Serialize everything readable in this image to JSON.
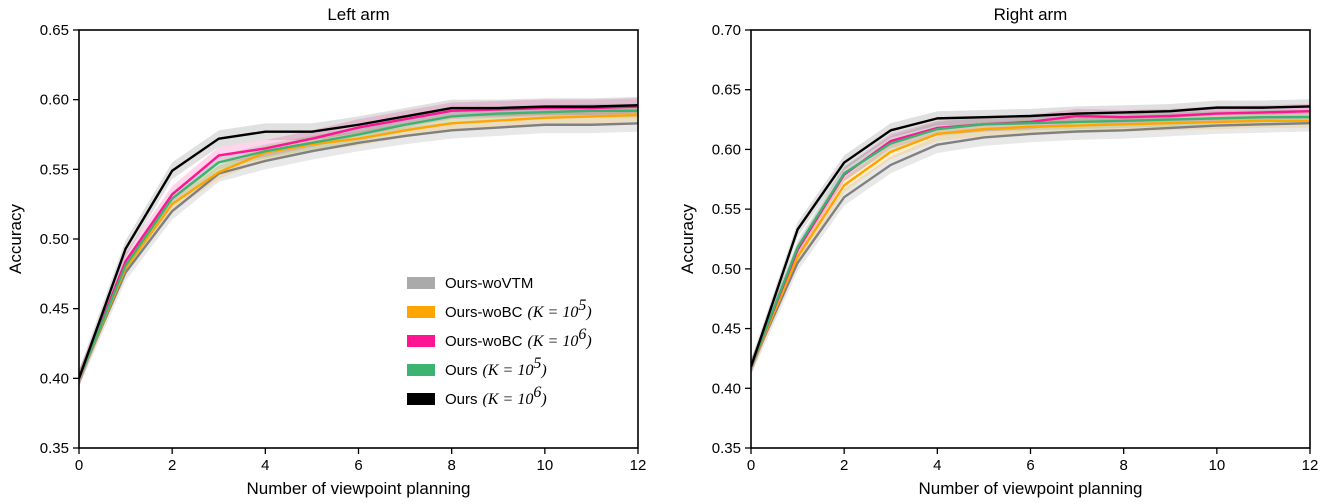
{
  "chart_data": [
    {
      "type": "line",
      "title": "Left arm",
      "xlabel": "Number of viewpoint planning",
      "ylabel": "Accuracy",
      "xlim": [
        0,
        12
      ],
      "ylim": [
        0.35,
        0.65
      ],
      "xticks": [
        0,
        2,
        4,
        6,
        8,
        10,
        12
      ],
      "yticks": [
        0.35,
        0.4,
        0.45,
        0.5,
        0.55,
        0.6,
        0.65
      ],
      "ytick_labels": [
        "0.35",
        "0.40",
        "0.45",
        "0.50",
        "0.55",
        "0.60",
        "0.65"
      ],
      "x": [
        0,
        1,
        2,
        3,
        4,
        5,
        6,
        7,
        8,
        9,
        10,
        11,
        12
      ],
      "series": [
        {
          "name": "Ours-woVTM",
          "color": "#808080",
          "band": 0.006,
          "values": [
            0.4,
            0.476,
            0.52,
            0.547,
            0.556,
            0.563,
            0.569,
            0.574,
            0.578,
            0.58,
            0.582,
            0.582,
            0.583
          ]
        },
        {
          "name": "Ours-woBC (K=10^5)",
          "color": "#FFA500",
          "band": 0.005,
          "values": [
            0.4,
            0.479,
            0.525,
            0.548,
            0.562,
            0.568,
            0.572,
            0.578,
            0.583,
            0.585,
            0.587,
            0.588,
            0.589
          ]
        },
        {
          "name": "Ours-woBC (K=10^6)",
          "color": "#FF1493",
          "band": 0.006,
          "values": [
            0.4,
            0.484,
            0.532,
            0.56,
            0.565,
            0.572,
            0.58,
            0.586,
            0.592,
            0.593,
            0.594,
            0.594,
            0.595
          ]
        },
        {
          "name": "Ours (K=10^5)",
          "color": "#3CB371",
          "band": 0.005,
          "values": [
            0.4,
            0.481,
            0.529,
            0.555,
            0.563,
            0.569,
            0.575,
            0.582,
            0.588,
            0.59,
            0.591,
            0.592,
            0.592
          ]
        },
        {
          "name": "Ours (K=10^6)",
          "color": "#000000",
          "band": 0.006,
          "values": [
            0.4,
            0.493,
            0.549,
            0.572,
            0.577,
            0.577,
            0.582,
            0.588,
            0.594,
            0.594,
            0.595,
            0.595,
            0.596
          ]
        }
      ]
    },
    {
      "type": "line",
      "title": "Right arm",
      "xlabel": "Number of viewpoint planning",
      "ylabel": "Accuracy",
      "xlim": [
        0,
        12
      ],
      "ylim": [
        0.35,
        0.7
      ],
      "xticks": [
        0,
        2,
        4,
        6,
        8,
        10,
        12
      ],
      "yticks": [
        0.35,
        0.4,
        0.45,
        0.5,
        0.55,
        0.6,
        0.65,
        0.7
      ],
      "ytick_labels": [
        "0.35",
        "0.40",
        "0.45",
        "0.50",
        "0.55",
        "0.60",
        "0.65",
        "0.70"
      ],
      "x": [
        0,
        1,
        2,
        3,
        4,
        5,
        6,
        7,
        8,
        9,
        10,
        11,
        12
      ],
      "series": [
        {
          "name": "Ours-woVTM",
          "color": "#808080",
          "band": 0.007,
          "values": [
            0.418,
            0.505,
            0.56,
            0.587,
            0.604,
            0.61,
            0.613,
            0.615,
            0.616,
            0.618,
            0.62,
            0.621,
            0.622
          ]
        },
        {
          "name": "Ours-woBC (K=10^5)",
          "color": "#FFA500",
          "band": 0.006,
          "values": [
            0.418,
            0.51,
            0.57,
            0.598,
            0.613,
            0.617,
            0.619,
            0.62,
            0.621,
            0.622,
            0.623,
            0.624,
            0.624
          ]
        },
        {
          "name": "Ours-woBC (K=10^6)",
          "color": "#FF1493",
          "band": 0.006,
          "values": [
            0.418,
            0.516,
            0.579,
            0.607,
            0.618,
            0.621,
            0.623,
            0.628,
            0.627,
            0.628,
            0.63,
            0.631,
            0.632
          ]
        },
        {
          "name": "Ours (K=10^5)",
          "color": "#3CB371",
          "band": 0.006,
          "values": [
            0.418,
            0.518,
            0.58,
            0.605,
            0.617,
            0.621,
            0.622,
            0.623,
            0.624,
            0.625,
            0.626,
            0.627,
            0.627
          ]
        },
        {
          "name": "Ours (K=10^6)",
          "color": "#000000",
          "band": 0.006,
          "values": [
            0.418,
            0.533,
            0.589,
            0.616,
            0.626,
            0.627,
            0.628,
            0.63,
            0.631,
            0.632,
            0.635,
            0.635,
            0.636
          ]
        }
      ]
    }
  ],
  "legend": {
    "location": "lower-right of left panel",
    "entries": [
      {
        "label": "Ours-woVTM",
        "math": "",
        "exp": "",
        "color": "#AAAAAA"
      },
      {
        "label": "Ours-woBC",
        "math": "(K = 10",
        "exp": "5",
        "close": ")",
        "color": "#FFA500"
      },
      {
        "label": "Ours-woBC",
        "math": "(K = 10",
        "exp": "6",
        "close": ")",
        "color": "#FF1493"
      },
      {
        "label": "Ours",
        "math": "(K = 10",
        "exp": "5",
        "close": ")",
        "color": "#3CB371"
      },
      {
        "label": "Ours",
        "math": "(K = 10",
        "exp": "6",
        "close": ")",
        "color": "#000000"
      }
    ]
  }
}
